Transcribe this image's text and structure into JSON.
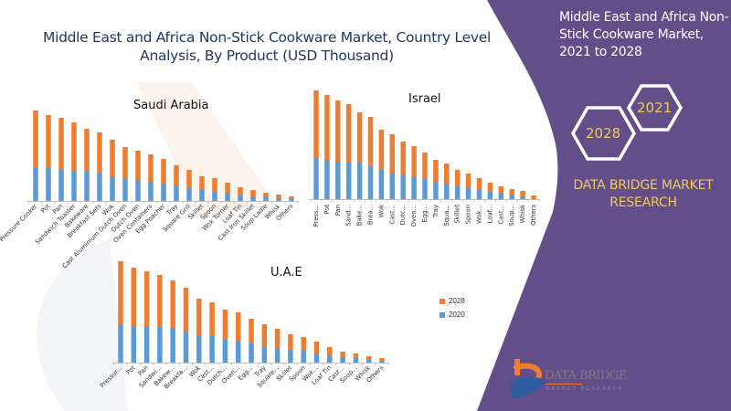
{
  "header": {
    "title": "Middle East and Africa Non-Stick Cookware Market, Country Level Analysis, By Product (USD Thousand)"
  },
  "side_panel": {
    "title": "Middle East and Africa Non-Stick Cookware Market, 2021 to 2028",
    "hex_2021": "2021",
    "hex_2028": "2028",
    "brand": "DATA BRIDGE MARKET RESEARCH",
    "logo_text": "DATA BRIDGE",
    "logo_sub": "MARKET RESEARCH"
  },
  "colors": {
    "panel": "#634e8a",
    "series_2028": "#ed7d31",
    "series_2020": "#5b9bd5",
    "title": "#1f3864",
    "brand": "#f0c95a"
  },
  "chart_data": [
    {
      "type": "bar",
      "stacked": true,
      "title": "Saudi Arabia",
      "xlabel": "",
      "ylabel": "",
      "units": "USD Thousand (relative, no axis shown)",
      "categories": [
        "Pressure Cooker",
        "Pot",
        "Pan",
        "Sandwich Toaster",
        "Bakeware",
        "Breakfast Sets",
        "Wok",
        "Cast Aluminium Dutch Oven",
        "Dutch Oven",
        "Oven Containers",
        "Egg Poacher",
        "Tray",
        "Square Grill",
        "Skillet",
        "Spoon",
        "Wok Turner",
        "Loaf Tin",
        "Cast Iron Skillet",
        "Soup Ladle",
        "Whisk",
        "Others"
      ],
      "series": [
        {
          "name": "2020",
          "values": [
            37,
            36,
            34,
            33,
            32,
            30,
            27,
            25,
            23,
            21,
            19,
            16,
            14,
            12,
            10,
            9,
            6,
            5,
            4,
            3,
            2
          ]
        },
        {
          "name": "2028",
          "values": [
            62,
            58,
            57,
            53,
            47,
            45,
            40,
            34,
            32,
            30,
            27,
            23,
            20,
            15,
            15,
            11,
            9,
            7,
            5,
            4,
            3
          ]
        }
      ],
      "legend": [
        "2028",
        "2020"
      ],
      "grid": false
    },
    {
      "type": "bar",
      "stacked": true,
      "title": "Israel",
      "xlabel": "",
      "ylabel": "",
      "units": "USD Thousand (relative, no axis shown)",
      "categories": [
        "Press...",
        "Pot",
        "Pan",
        "Sand...",
        "Bake...",
        "Brea...",
        "Wok",
        "Cast...",
        "Dutc...",
        "Oven...",
        "Egg...",
        "Tray",
        "Squa...",
        "Skillet",
        "Spoon",
        "Wok...",
        "Loaf...",
        "Cast...",
        "Soup...",
        "Whisk",
        "Others"
      ],
      "series": [
        {
          "name": "2020",
          "values": [
            45,
            43,
            41,
            41,
            40,
            36,
            32,
            29,
            27,
            25,
            22,
            19,
            17,
            14,
            12,
            10,
            8,
            6,
            4,
            3,
            1
          ]
        },
        {
          "name": "2028",
          "values": [
            74,
            71,
            67,
            63,
            55,
            54,
            44,
            42,
            36,
            33,
            29,
            24,
            22,
            18,
            16,
            13,
            10,
            8,
            7,
            6,
            3
          ]
        }
      ],
      "legend": [
        "2028",
        "2020"
      ],
      "grid": false
    },
    {
      "type": "bar",
      "stacked": true,
      "title": "U.A.E",
      "xlabel": "",
      "ylabel": "",
      "units": "USD Thousand (relative, no axis shown)",
      "categories": [
        "Pressur...",
        "Pot",
        "Pan",
        "Sandwi...",
        "Bakew...",
        "Breakfa...",
        "Wok",
        "Cast...",
        "Dutch...",
        "Oven...",
        "Egg...",
        "Tray",
        "Square...",
        "Skillet",
        "Spoon",
        "Wok...",
        "Loaf Tin",
        "Cast...",
        "Soup...",
        "Whisk",
        "Others"
      ],
      "series": [
        {
          "name": "2020",
          "values": [
            42,
            40,
            39,
            39,
            38,
            34,
            30,
            29,
            25,
            24,
            21,
            18,
            16,
            14,
            13,
            10,
            8,
            6,
            5,
            3,
            2
          ]
        },
        {
          "name": "2028",
          "values": [
            69,
            64,
            61,
            57,
            52,
            48,
            40,
            37,
            33,
            31,
            27,
            24,
            21,
            17,
            15,
            13,
            9,
            6,
            5,
            4,
            3
          ]
        }
      ],
      "legend": [
        "2028",
        "2020"
      ],
      "legend_position": "right",
      "grid": false
    }
  ]
}
